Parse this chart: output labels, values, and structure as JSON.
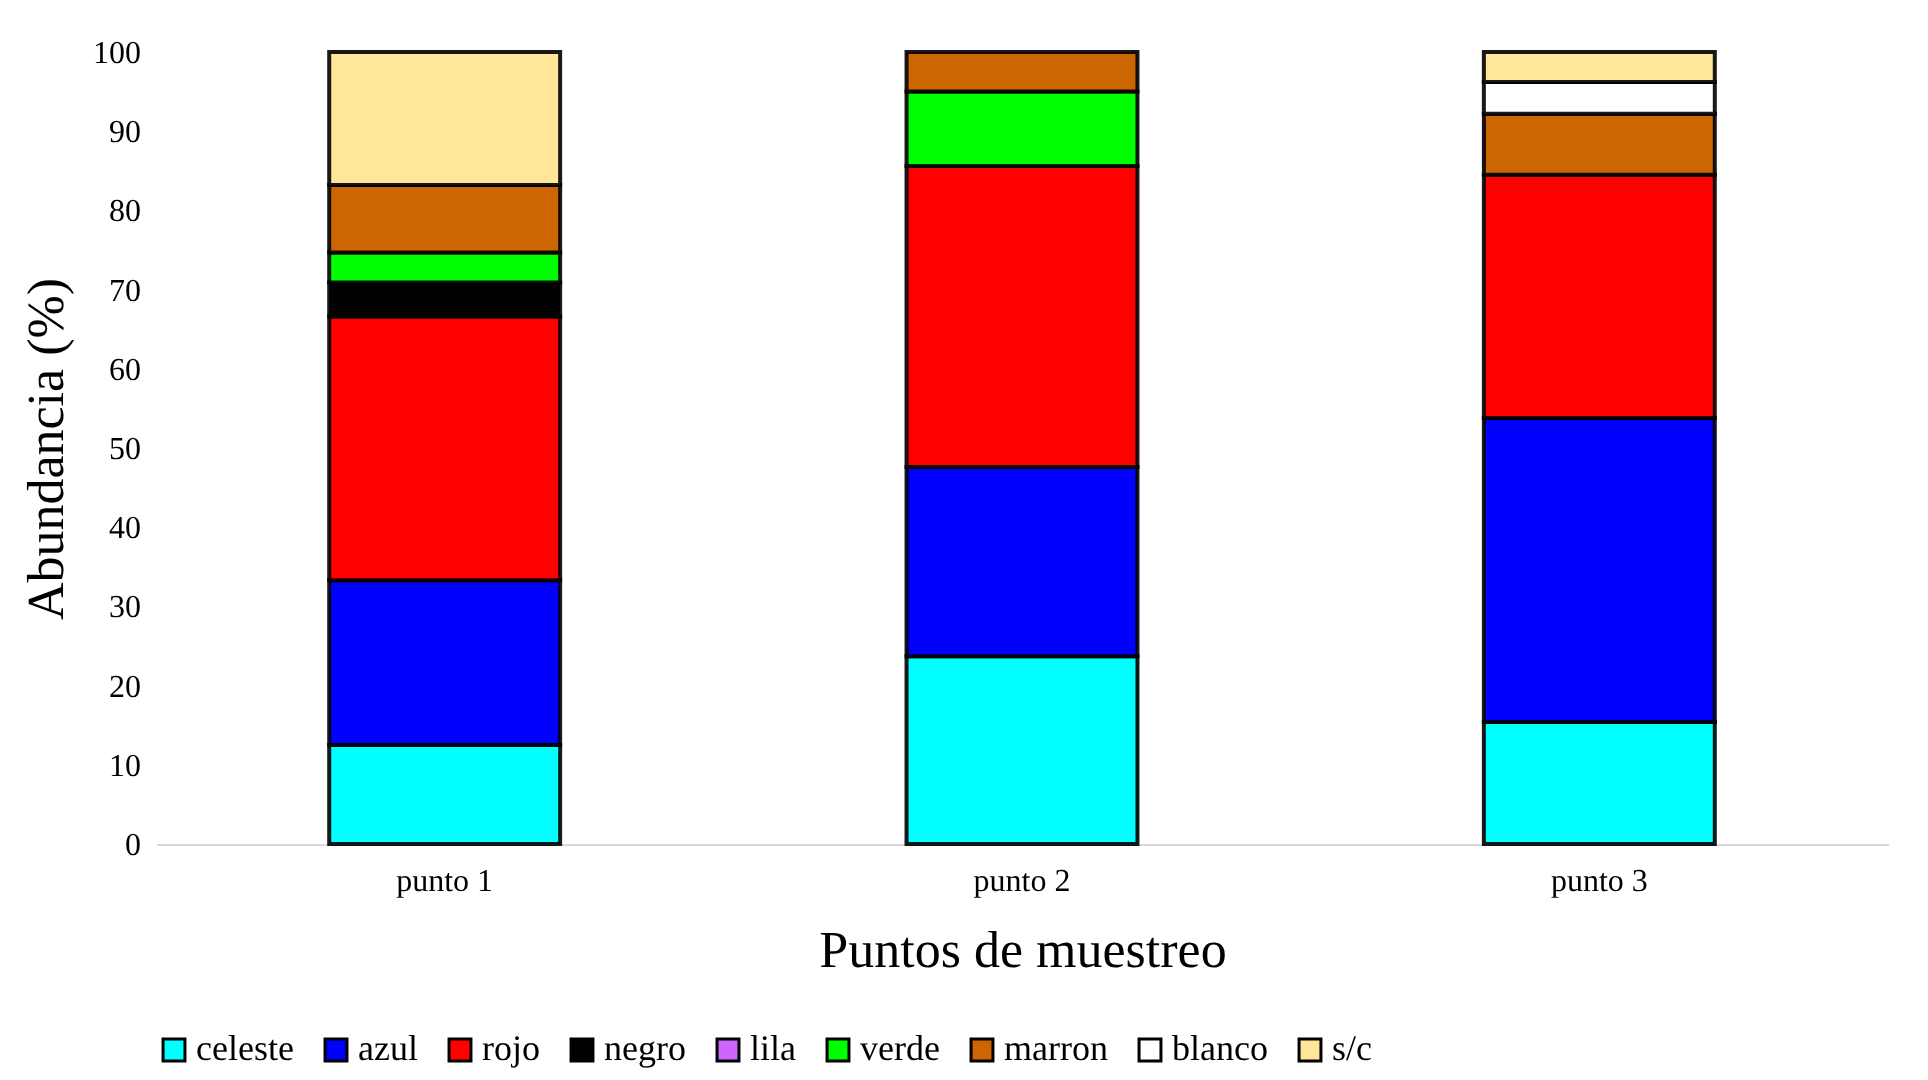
{
  "chart_data": {
    "type": "bar",
    "stacked": true,
    "xlabel": "Puntos de muestreo",
    "ylabel": "Abundancia (%)",
    "categories": [
      "punto 1",
      "punto 2",
      "punto 3"
    ],
    "series": [
      {
        "name": "celeste",
        "color": "#00ffff",
        "values": [
          12.5,
          23.7,
          15.4
        ]
      },
      {
        "name": "azul",
        "color": "#0000ff",
        "values": [
          20.8,
          23.9,
          38.4
        ]
      },
      {
        "name": "rojo",
        "color": "#ff0000",
        "values": [
          33.3,
          38.0,
          30.7
        ]
      },
      {
        "name": "negro",
        "color": "#000000",
        "values": [
          4.3,
          null,
          null
        ]
      },
      {
        "name": "lila",
        "color": "#cc66ff",
        "values": [
          null,
          null,
          null
        ]
      },
      {
        "name": "verde",
        "color": "#00ff00",
        "values": [
          3.8,
          9.4,
          null
        ]
      },
      {
        "name": "marron",
        "color": "#cc6600",
        "values": [
          8.5,
          5.0,
          7.7
        ]
      },
      {
        "name": "blanco",
        "color": "#ffffff",
        "values": [
          null,
          null,
          4.0
        ]
      },
      {
        "name": "s/c",
        "color": "#ffe699",
        "values": [
          16.8,
          null,
          3.8
        ]
      }
    ],
    "ylim": [
      0,
      100
    ],
    "yticks": [
      0,
      10,
      20,
      30,
      40,
      50,
      60,
      70,
      80,
      90,
      100
    ],
    "grid": false,
    "legend": "bottom"
  }
}
